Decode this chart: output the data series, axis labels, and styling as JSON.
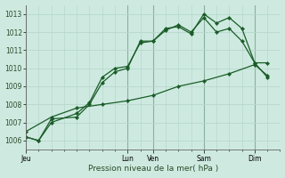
{
  "background_color": "#ceeae0",
  "grid_color": "#b8d8cc",
  "line_color": "#1a5c28",
  "xlabel": "Pression niveau de la mer( hPa )",
  "ylim": [
    1005.5,
    1013.5
  ],
  "yticks": [
    1006,
    1007,
    1008,
    1009,
    1010,
    1011,
    1012,
    1013
  ],
  "xtick_labels": [
    "Jeu",
    "Lun",
    "Ven",
    "Sam",
    "Dim"
  ],
  "major_xtick_positions": [
    0,
    16,
    20,
    28,
    36
  ],
  "xlim": [
    0,
    40
  ],
  "series1_x": [
    0,
    2,
    4,
    8,
    10,
    12,
    14,
    16,
    18,
    20,
    22,
    24,
    26,
    28,
    30,
    32,
    34,
    36,
    38
  ],
  "series1_y": [
    1006.2,
    1006.0,
    1007.2,
    1007.3,
    1008.0,
    1009.2,
    1009.8,
    1010.0,
    1011.5,
    1011.5,
    1012.2,
    1012.3,
    1011.9,
    1013.0,
    1012.5,
    1012.8,
    1012.2,
    1010.3,
    1010.3
  ],
  "series2_x": [
    0,
    2,
    4,
    8,
    10,
    12,
    14,
    16,
    18,
    20,
    22,
    24,
    26,
    28,
    30,
    32,
    34,
    36,
    38
  ],
  "series2_y": [
    1006.2,
    1006.0,
    1007.0,
    1007.5,
    1008.1,
    1009.5,
    1010.0,
    1010.1,
    1011.4,
    1011.5,
    1012.1,
    1012.4,
    1012.0,
    1012.8,
    1012.0,
    1012.2,
    1011.5,
    1010.3,
    1009.5
  ],
  "series3_x": [
    0,
    4,
    8,
    12,
    16,
    20,
    24,
    28,
    32,
    36,
    38
  ],
  "series3_y": [
    1006.5,
    1007.3,
    1007.8,
    1008.0,
    1008.2,
    1008.5,
    1009.0,
    1009.3,
    1009.7,
    1010.2,
    1009.6
  ]
}
